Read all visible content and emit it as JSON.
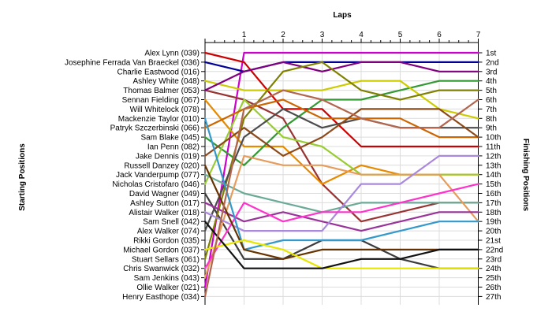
{
  "chart_data": {
    "type": "line",
    "title": "Laps",
    "xlabel": "Laps",
    "ylabel_left": "Starting Positions",
    "ylabel_right": "Finishing Positions",
    "laps": [
      1,
      2,
      3,
      4,
      5,
      6,
      7
    ],
    "start_labels": [
      "Alex Lynn (039)",
      "Josephine Ferrada Van Braeckel (036)",
      "Charlie Eastwood (016)",
      "Ashley White (048)",
      "Thomas Balmer (053)",
      "Sennan Fielding (067)",
      "Will Whitelock (078)",
      "Mackenzie Taylor (010)",
      "Patryk Szczerbinski (066)",
      "Sam Blake (045)",
      "Ian Penn (082)",
      "Jake Dennis (019)",
      "Russell Danzey (020)",
      "Jack Vanderpump (077)",
      "Nicholas Cristofaro (046)",
      "David Wagner (049)",
      "Ashley Sutton (017)",
      "Alistair Walker (018)",
      "Sam Snell (042)",
      "Alex Walker (074)",
      "Rikki Gordon (035)",
      "Michael Gordon (037)",
      "Stuart Sellars (061)",
      "Chris Swanwick (032)",
      "Sam Jenkins (043)",
      "Ollie Walker (021)",
      "Henry Easthope (034)"
    ],
    "finish_labels": [
      "1st",
      "2nd",
      "3rd",
      "4th",
      "5th",
      "6th",
      "7th",
      "8th",
      "9th",
      "10th",
      "11th",
      "12th",
      "13th",
      "14th",
      "15th",
      "16th",
      "17th",
      "18th",
      "19th",
      "20th",
      "21st",
      "22nd",
      "23rd",
      "24th",
      "25th",
      "26th",
      "27th"
    ],
    "grid": true,
    "series": [
      {
        "color": "#cc00cc",
        "values": [
          26,
          1,
          1,
          1,
          1,
          1,
          1,
          1
        ]
      },
      {
        "color": "#000099",
        "values": [
          2,
          3,
          2,
          2,
          2,
          2,
          2,
          2
        ]
      },
      {
        "color": "#3c3c3c",
        "values": [
          16,
          23,
          23,
          21,
          21,
          23,
          24,
          24
        ]
      },
      {
        "color": "#993333",
        "values": [
          5,
          6,
          8,
          15,
          19,
          18,
          17,
          17
        ]
      },
      {
        "color": "#cc0000",
        "values": [
          1,
          2,
          7,
          7,
          11,
          11,
          11,
          11
        ]
      },
      {
        "color": "#e68a00",
        "values": [
          6,
          11,
          11,
          15,
          13,
          14,
          14,
          14
        ]
      },
      {
        "color": "#339933",
        "values": [
          10,
          13,
          9,
          6,
          6,
          5,
          4,
          4
        ]
      },
      {
        "color": "#cccc00",
        "values": [
          4,
          5,
          5,
          5,
          4,
          4,
          7,
          8
        ]
      },
      {
        "color": "#800080",
        "values": [
          5,
          3,
          2,
          3,
          2,
          2,
          3,
          3
        ]
      },
      {
        "color": "#808000",
        "values": [
          23,
          8,
          3,
          2,
          5,
          6,
          5,
          5
        ]
      },
      {
        "color": "#99cc33",
        "values": [
          15,
          6,
          10,
          11,
          14,
          14,
          14,
          14
        ]
      },
      {
        "color": "#4d4d4d",
        "values": [
          20,
          10,
          7,
          9,
          8,
          9,
          9,
          9
        ]
      },
      {
        "color": "#cc6600",
        "values": [
          9,
          7,
          6,
          8,
          8,
          8,
          10,
          10
        ]
      },
      {
        "color": "#8c4a1a",
        "values": [
          12,
          9,
          12,
          10,
          7,
          7,
          7,
          10
        ]
      },
      {
        "color": "#6aaa96",
        "values": [
          14,
          16,
          17,
          18,
          17,
          17,
          17,
          17
        ]
      },
      {
        "color": "#e69c5c",
        "values": [
          25,
          12,
          13,
          13,
          14,
          14,
          14,
          19
        ]
      },
      {
        "color": "#993399",
        "values": [
          17,
          19,
          18,
          19,
          20,
          19,
          18,
          18
        ]
      },
      {
        "color": "#aa88dd",
        "values": [
          18,
          20,
          20,
          20,
          15,
          15,
          12,
          12
        ]
      },
      {
        "color": "#ff33cc",
        "values": [
          24,
          17,
          19,
          18,
          18,
          17,
          16,
          15
        ]
      },
      {
        "color": "#3399cc",
        "values": [
          8,
          22,
          21,
          21,
          21,
          20,
          19,
          19
        ]
      },
      {
        "color": "#663300",
        "values": [
          13,
          22,
          23,
          22,
          22,
          22,
          22,
          22
        ]
      },
      {
        "color": "#e6e600",
        "values": [
          22,
          21,
          22,
          24,
          24,
          24,
          24,
          24
        ]
      },
      {
        "color": "#111111",
        "values": [
          19,
          24,
          24,
          24,
          23,
          23,
          22,
          22
        ]
      },
      {
        "color": "#b3664d",
        "values": [
          27,
          7,
          5,
          6,
          8,
          9,
          9,
          6
        ]
      }
    ]
  }
}
